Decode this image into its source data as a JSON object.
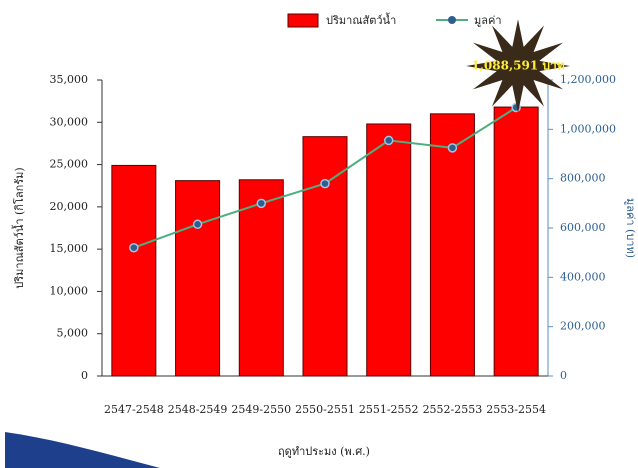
{
  "chart_data": {
    "type": "bar-line",
    "categories": [
      "2547-2548",
      "2548-2549",
      "2549-2550",
      "2550-2551",
      "2551-2552",
      "2552-2553",
      "2553-2554"
    ],
    "series": [
      {
        "name": "ปริมาณสัตว์น้ำ",
        "type": "bar",
        "color": "#ff0000",
        "values": [
          24900,
          23100,
          23200,
          28300,
          29800,
          31000,
          31800
        ]
      },
      {
        "name": "มูลค่า",
        "type": "line",
        "axis": "y2",
        "color": "#4caf7d",
        "marker_color": "#2e5f8f",
        "values": [
          520000,
          615000,
          700000,
          780000,
          955000,
          925000,
          1088591
        ]
      }
    ],
    "annotation": "1,088,591 บาท",
    "x_label": "ฤดูทำประมง (พ.ศ.)",
    "y_label": "ปริมาณสัตว์น้ำ (กิโลกรัม)",
    "y2_label": "มูลค่า (บาท)",
    "ylim": [
      0,
      35000
    ],
    "yticks": [
      0,
      {
        "value": 5000,
        "label": "5,000"
      },
      {
        "value": 10000,
        "label": "10,000"
      },
      {
        "value": 15000,
        "label": "15,000"
      },
      {
        "value": 20000,
        "label": "20,000"
      },
      {
        "value": 25000,
        "label": "25,000"
      },
      {
        "value": 30000,
        "label": "30,000"
      },
      {
        "value": 35000,
        "label": "35,000"
      }
    ],
    "y2lim": [
      0,
      1200000
    ],
    "y2ticks": [
      0,
      {
        "value": 200000,
        "label": "200,000"
      },
      {
        "value": 400000,
        "label": "400,000"
      },
      {
        "value": 600000,
        "label": "600,000"
      },
      {
        "value": 800000,
        "label": "800,000"
      },
      {
        "value": 1000000,
        "label": "1,000,000"
      },
      {
        "value": 1200000,
        "label": "1,200,000"
      }
    ],
    "legend": "top"
  }
}
